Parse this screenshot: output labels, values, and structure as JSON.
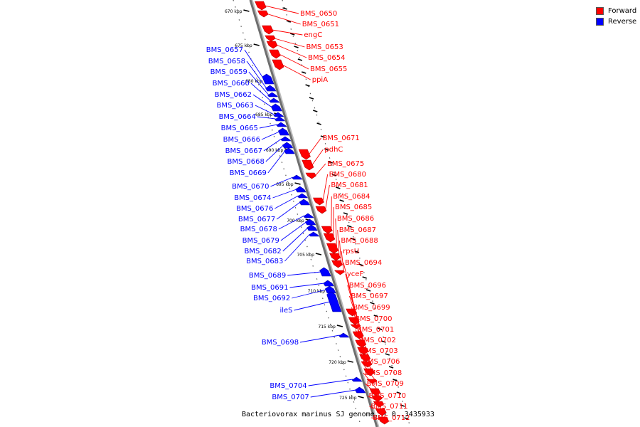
{
  "legend": {
    "forward_label": "Forward",
    "reverse_label": "Reverse",
    "forward_color": "#ff0000",
    "reverse_color": "#0000ff"
  },
  "caption": "Bacteriovorax marinus SJ genome. - 0..3435933",
  "scale": {
    "unit": "kbp",
    "visible_range_kbp": [
      668,
      727
    ],
    "ticks": [
      670,
      675,
      680,
      685,
      690,
      695,
      700,
      705,
      710,
      715,
      720,
      725
    ]
  },
  "genes": {
    "forward": [
      "BMS_0650",
      "BMS_0651",
      "engC",
      "BMS_0653",
      "BMS_0654",
      "BMS_0655",
      "ppiA",
      "BMS_0671",
      "pdhC",
      "BMS_0675",
      "BMS_0680",
      "BMS_0681",
      "BMS_0684",
      "BMS_0685",
      "BMS_0686",
      "BMS_0687",
      "BMS_0688",
      "rpsU",
      "BMS_0694",
      "yceF",
      "BMS_0696",
      "BMS_0697",
      "BMS_0699",
      "BMS_0700",
      "BMS_0701",
      "BMS_0702",
      "BMS_0703",
      "BMS_0706",
      "BMS_0708",
      "BMS_0709",
      "BMS_0710",
      "BMS_0711",
      "BMS_0712"
    ],
    "reverse": [
      "BMS_0657",
      "BMS_0658",
      "BMS_0659",
      "BMS_0660",
      "BMS_0662",
      "BMS_0663",
      "BMS_0664",
      "BMS_0665",
      "BMS_0666",
      "BMS_0667",
      "BMS_0668",
      "BMS_0669",
      "BMS_0670",
      "BMS_0674",
      "BMS_0676",
      "BMS_0677",
      "BMS_0678",
      "BMS_0679",
      "BMS_0682",
      "BMS_0683",
      "BMS_0689",
      "BMS_0691",
      "BMS_0692",
      "ileS",
      "BMS_0698",
      "BMS_0704",
      "BMS_0707"
    ]
  }
}
